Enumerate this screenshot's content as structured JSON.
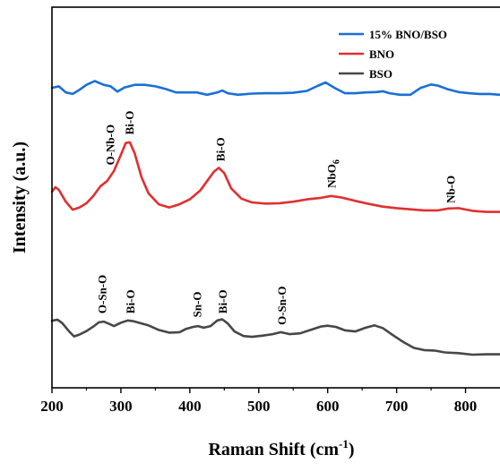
{
  "chart_data": {
    "type": "line",
    "xlabel": "Raman Shift (cm",
    "xlabel_sup": "-1",
    "xlabel_end": ")",
    "ylabel": "Intensity (a.u.)",
    "xlim": [
      200,
      850
    ],
    "ylim": [
      0,
      100
    ],
    "xticks": [
      200,
      300,
      400,
      500,
      600,
      700,
      800
    ],
    "y_tick_labels": false,
    "legend_position": "top-right",
    "series": [
      {
        "name": "15% BNO/BSO",
        "color": "#1a6fd6",
        "x": [
          200,
          210,
          220,
          230,
          240,
          250,
          262,
          275,
          285,
          295,
          305,
          320,
          335,
          350,
          365,
          380,
          395,
          410,
          425,
          440,
          447,
          455,
          470,
          490,
          510,
          530,
          550,
          570,
          585,
          597,
          610,
          625,
          640,
          655,
          670,
          680,
          690,
          705,
          720,
          735,
          750,
          760,
          775,
          790,
          805,
          820,
          835,
          850
        ],
        "y": [
          78.8,
          79.2,
          77.6,
          77.2,
          78.3,
          79.6,
          80.6,
          79.6,
          79.2,
          77.8,
          78.9,
          79.6,
          79.6,
          79.2,
          78.5,
          77.6,
          77.6,
          77.6,
          77.0,
          77.6,
          78.1,
          77.4,
          77.0,
          77.3,
          77.4,
          77.4,
          77.5,
          78.0,
          79.3,
          80.2,
          78.8,
          77.4,
          77.4,
          77.6,
          77.7,
          77.9,
          77.4,
          77.0,
          77.0,
          78.8,
          79.7,
          79.4,
          78.4,
          77.7,
          77.4,
          77.2,
          77.2,
          77.0
        ]
      },
      {
        "name": "BNO",
        "color": "#e03030",
        "x": [
          200,
          205,
          210,
          220,
          230,
          240,
          250,
          260,
          270,
          280,
          290,
          300,
          307,
          313,
          320,
          330,
          340,
          355,
          370,
          385,
          400,
          415,
          425,
          435,
          442,
          450,
          460,
          475,
          490,
          510,
          530,
          550,
          570,
          590,
          605,
          620,
          640,
          660,
          680,
          700,
          720,
          740,
          760,
          775,
          790,
          810,
          830,
          850
        ],
        "y": [
          51.5,
          52.7,
          52.0,
          48.9,
          46.8,
          47.4,
          48.5,
          50.4,
          52.9,
          54.3,
          57.0,
          61.2,
          64.3,
          64.5,
          61.6,
          55.3,
          51.1,
          48.2,
          47.4,
          48.2,
          49.5,
          51.8,
          54.3,
          56.8,
          57.8,
          56.4,
          52.4,
          49.7,
          48.7,
          48.4,
          48.5,
          48.9,
          49.5,
          49.9,
          50.4,
          50.0,
          49.1,
          48.3,
          47.6,
          47.2,
          46.9,
          46.6,
          46.6,
          47.1,
          47.2,
          46.5,
          46.2,
          46.2
        ]
      },
      {
        "name": "BSO",
        "color": "#474747",
        "x": [
          200,
          208,
          215,
          225,
          232,
          240,
          250,
          260,
          268,
          275,
          283,
          290,
          300,
          310,
          318,
          328,
          340,
          355,
          370,
          385,
          395,
          405,
          412,
          420,
          430,
          440,
          447,
          455,
          465,
          478,
          490,
          505,
          520,
          532,
          545,
          560,
          575,
          590,
          600,
          612,
          625,
          640,
          655,
          668,
          680,
          695,
          710,
          725,
          740,
          755,
          770,
          790,
          810,
          830,
          850
        ],
        "y": [
          17.6,
          17.9,
          17.0,
          14.8,
          13.5,
          14.0,
          14.9,
          16.1,
          17.2,
          17.4,
          16.8,
          16.2,
          17.1,
          17.7,
          17.5,
          17.0,
          16.4,
          15.2,
          14.5,
          14.6,
          15.5,
          16.0,
          16.2,
          15.8,
          16.2,
          17.7,
          18.0,
          16.9,
          14.8,
          13.6,
          13.4,
          13.7,
          14.1,
          14.6,
          14.1,
          14.3,
          15.2,
          16.1,
          16.3,
          16.0,
          15.1,
          14.8,
          15.8,
          16.4,
          15.7,
          13.8,
          12.0,
          10.5,
          9.9,
          9.8,
          9.3,
          9.1,
          8.7,
          8.8,
          8.8
        ]
      }
    ],
    "annotations": [
      {
        "label": "O-Nb-O",
        "x": 284,
        "y": 58.5
      },
      {
        "label": "Bi-O",
        "x": 312,
        "y": 66.5
      },
      {
        "label": "Bi-O",
        "x": 444,
        "y": 59.5
      },
      {
        "label": "NbO",
        "sub": "6",
        "x": 605,
        "y": 52.5
      },
      {
        "label": "Nb-O",
        "x": 778,
        "y": 48.5
      },
      {
        "label": "O-Sn-O",
        "x": 272,
        "y": 19.5
      },
      {
        "label": "Bi-O",
        "x": 313,
        "y": 19.5
      },
      {
        "label": "Sn-O",
        "x": 410,
        "y": 18.5
      },
      {
        "label": "Bi-O",
        "x": 447,
        "y": 19.5
      },
      {
        "label": "O-Sn-O",
        "x": 533,
        "y": 16.5
      }
    ]
  }
}
